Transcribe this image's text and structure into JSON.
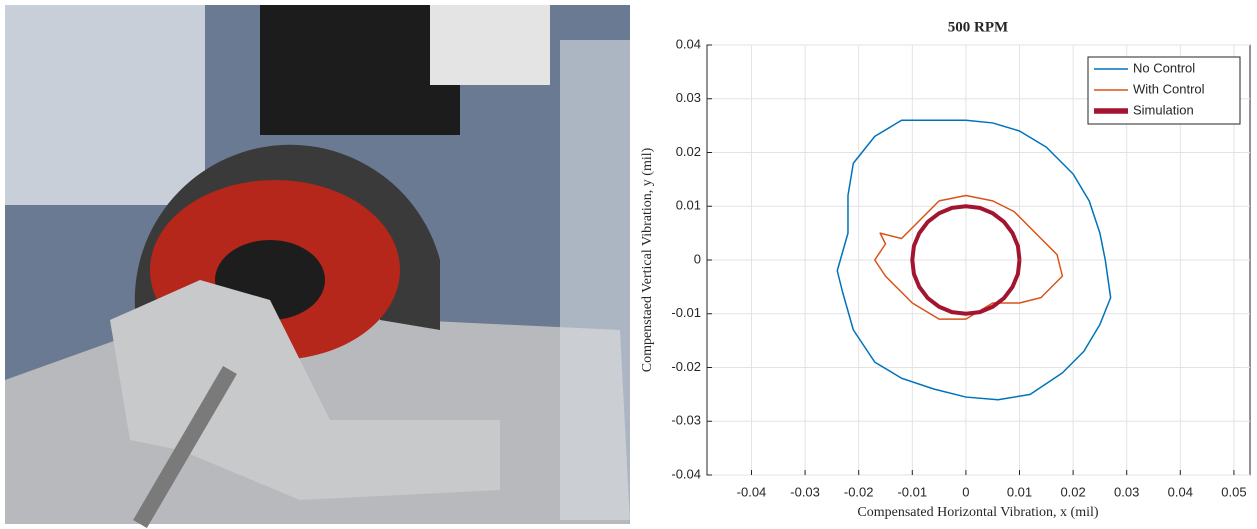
{
  "chart_data": {
    "type": "line",
    "title": "500 RPM",
    "x_label": "Compensated Horizontal Vibration, x (mil)",
    "y_label": "Compenstaed Vertical Vibration, y (mil)",
    "xlim": [
      -0.0483,
      0.053
    ],
    "ylim": [
      -0.04,
      0.04
    ],
    "xticks": [
      -0.04,
      -0.03,
      -0.02,
      -0.01,
      0,
      0.01,
      0.02,
      0.03,
      0.04,
      0.05
    ],
    "yticks": [
      -0.04,
      -0.03,
      -0.02,
      -0.01,
      0,
      0.01,
      0.02,
      0.03,
      0.04
    ],
    "grid": true,
    "legend": "upper right",
    "series": [
      {
        "name": "No Control",
        "color": "#0072bd",
        "line_width": 1.5,
        "x": [
          -0.005,
          0,
          0.005,
          0.01,
          0.015,
          0.02,
          0.023,
          0.025,
          0.026,
          0.027,
          0.025,
          0.022,
          0.018,
          0.012,
          0.006,
          0,
          -0.006,
          -0.012,
          -0.017,
          -0.021,
          -0.023,
          -0.024,
          -0.022,
          -0.022,
          -0.021,
          -0.017,
          -0.012,
          -0.005
        ],
        "values": [
          0.026,
          0.026,
          0.0255,
          0.024,
          0.021,
          0.016,
          0.011,
          0.005,
          0,
          -0.007,
          -0.012,
          -0.017,
          -0.021,
          -0.025,
          -0.026,
          -0.0255,
          -0.024,
          -0.022,
          -0.019,
          -0.013,
          -0.006,
          -0.002,
          0.005,
          0.012,
          0.018,
          0.023,
          0.026,
          0.026
        ]
      },
      {
        "name": "With Control",
        "color": "#d95319",
        "line_width": 1.5,
        "x": [
          -0.005,
          0,
          0.005,
          0.009,
          0.012,
          0.015,
          0.017,
          0.018,
          0.014,
          0.01,
          0.005,
          0,
          -0.005,
          -0.01,
          -0.013,
          -0.015,
          -0.017,
          -0.015,
          -0.016,
          -0.012,
          -0.01,
          -0.007,
          -0.005
        ],
        "values": [
          0.011,
          0.012,
          0.011,
          0.009,
          0.006,
          0.003,
          0.001,
          -0.003,
          -0.007,
          -0.008,
          -0.008,
          -0.011,
          -0.011,
          -0.008,
          -0.005,
          -0.003,
          0,
          0.003,
          0.005,
          0.004,
          0.006,
          0.009,
          0.011
        ]
      },
      {
        "name": "Simulation",
        "color": "#a2142f",
        "line_width": 4,
        "x": [
          0.01,
          0.0097,
          0.0087,
          0.0071,
          0.005,
          0.0026,
          0,
          -0.0026,
          -0.005,
          -0.0071,
          -0.0087,
          -0.0097,
          -0.01,
          -0.0097,
          -0.0087,
          -0.0071,
          -0.005,
          -0.0026,
          0,
          0.0026,
          0.005,
          0.0071,
          0.0087,
          0.0097,
          0.01
        ],
        "values": [
          0,
          0.0026,
          0.005,
          0.0071,
          0.0087,
          0.0097,
          0.01,
          0.0097,
          0.0087,
          0.0071,
          0.005,
          0.0026,
          0,
          -0.0026,
          -0.005,
          -0.0071,
          -0.0087,
          -0.0097,
          -0.01,
          -0.0097,
          -0.0087,
          -0.0071,
          -0.005,
          -0.0026,
          0
        ]
      }
    ]
  }
}
